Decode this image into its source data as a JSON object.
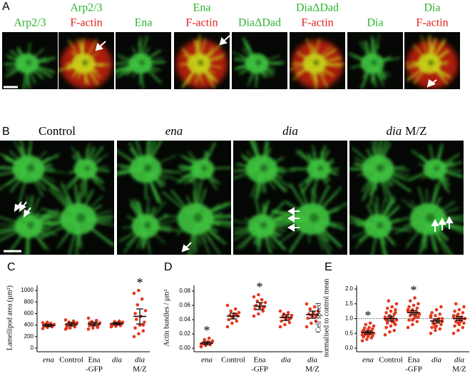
{
  "figure": {
    "panel_a": {
      "letter": "A",
      "tiles": [
        {
          "lines": [
            {
              "text": "Arp2/3",
              "color": "#2fb32f"
            }
          ]
        },
        {
          "lines": [
            {
              "text": "Arp2/3",
              "color": "#2fb32f"
            },
            {
              "text": "F-actin",
              "color": "#e0201b"
            }
          ]
        },
        {
          "lines": [
            {
              "text": "Ena",
              "color": "#2fb32f"
            }
          ]
        },
        {
          "lines": [
            {
              "text": "Ena",
              "color": "#2fb32f"
            },
            {
              "text": "F-actin",
              "color": "#e0201b"
            }
          ]
        },
        {
          "lines": [
            {
              "text": "DiaΔDad",
              "color": "#2fb32f"
            }
          ]
        },
        {
          "lines": [
            {
              "text": "DiaΔDad",
              "color": "#2fb32f"
            },
            {
              "text": "F-actin",
              "color": "#e0201b"
            }
          ]
        },
        {
          "lines": [
            {
              "text": "Dia",
              "color": "#2fb32f"
            }
          ]
        },
        {
          "lines": [
            {
              "text": "Dia",
              "color": "#2fb32f"
            },
            {
              "text": "F-actin",
              "color": "#e0201b"
            }
          ]
        }
      ]
    },
    "panel_b": {
      "letter": "B",
      "tiles": [
        {
          "parts": [
            {
              "text": "Control",
              "italic": false
            }
          ]
        },
        {
          "parts": [
            {
              "text": "ena",
              "italic": true
            }
          ]
        },
        {
          "parts": [
            {
              "text": "dia",
              "italic": true
            }
          ]
        },
        {
          "parts": [
            {
              "text": "dia",
              "italic": true
            },
            {
              "text": "M/Z",
              "italic": false
            }
          ]
        }
      ]
    }
  },
  "chart_data": [
    {
      "type": "dotplot",
      "letter": "C",
      "ylabel": [
        "Lamellipod area (µm²)"
      ],
      "categories": [
        [
          {
            "text": "ena",
            "italic": true
          }
        ],
        [
          {
            "text": "Control",
            "italic": false
          }
        ],
        [
          {
            "text": "Ena",
            "italic": false
          },
          {
            "text": "-GFP",
            "italic": false
          }
        ],
        [
          {
            "text": "dia",
            "italic": true
          }
        ],
        [
          {
            "text": "dia",
            "italic": true
          },
          {
            "text": "M/Z",
            "italic": false
          }
        ]
      ],
      "color": "#e5381f",
      "points": [
        [
          340,
          360,
          370,
          380,
          390,
          395,
          400,
          405,
          410,
          420,
          430,
          440,
          450,
          380,
          410
        ],
        [
          330,
          350,
          370,
          390,
          400,
          410,
          420,
          430,
          440,
          450,
          470,
          490,
          400,
          420,
          350
        ],
        [
          330,
          350,
          370,
          390,
          400,
          410,
          420,
          430,
          440,
          460,
          480,
          520,
          400,
          360,
          440
        ],
        [
          370,
          380,
          390,
          400,
          410,
          420,
          430,
          440,
          450,
          460,
          470,
          410,
          420,
          430
        ],
        [
          200,
          250,
          300,
          350,
          400,
          450,
          500,
          550,
          650,
          750,
          850,
          950,
          1000,
          400,
          600
        ]
      ],
      "means": [
        395,
        415,
        420,
        425,
        550
      ],
      "errors": [
        20,
        30,
        30,
        20,
        130
      ],
      "stars": [
        null,
        null,
        null,
        null,
        "*"
      ],
      "ylim": [
        0,
        1050
      ],
      "yticks": [
        0,
        200,
        400,
        600,
        800,
        1000
      ]
    },
    {
      "type": "dotplot",
      "letter": "D",
      "ylabel": [
        "Actin bundles / µm²"
      ],
      "categories": [
        [
          {
            "text": "ena",
            "italic": true
          }
        ],
        [
          {
            "text": "Control",
            "italic": false
          }
        ],
        [
          {
            "text": "Ena",
            "italic": false
          },
          {
            "text": "-GFP",
            "italic": false
          }
        ],
        [
          {
            "text": "dia",
            "italic": true
          }
        ],
        [
          {
            "text": "dia",
            "italic": true
          },
          {
            "text": "M/Z",
            "italic": false
          }
        ]
      ],
      "color": "#e5381f",
      "points": [
        [
          0.002,
          0.004,
          0.005,
          0.006,
          0.007,
          0.008,
          0.008,
          0.009,
          0.01,
          0.012,
          0.014,
          0.006,
          0.007
        ],
        [
          0.03,
          0.035,
          0.038,
          0.04,
          0.043,
          0.045,
          0.046,
          0.048,
          0.05,
          0.052,
          0.055,
          0.06,
          0.044,
          0.047
        ],
        [
          0.045,
          0.048,
          0.052,
          0.055,
          0.057,
          0.058,
          0.06,
          0.062,
          0.064,
          0.066,
          0.068,
          0.072,
          0.075,
          0.056
        ],
        [
          0.03,
          0.033,
          0.036,
          0.038,
          0.04,
          0.042,
          0.044,
          0.045,
          0.046,
          0.048,
          0.05,
          0.052,
          0.043,
          0.041
        ],
        [
          0.03,
          0.035,
          0.038,
          0.042,
          0.045,
          0.047,
          0.048,
          0.05,
          0.052,
          0.055,
          0.058,
          0.062,
          0.046,
          0.044
        ]
      ],
      "means": [
        0.007,
        0.045,
        0.059,
        0.043,
        0.047
      ],
      "errors": [
        0.002,
        0.004,
        0.005,
        0.004,
        0.005
      ],
      "stars": [
        "*",
        null,
        "*",
        null,
        null
      ],
      "ylim": [
        0,
        0.085
      ],
      "yticks": [
        {
          "value": 0,
          "label": "0.00"
        },
        {
          "value": 0.02,
          "label": "0.02"
        },
        {
          "value": 0.04,
          "label": "0.04"
        },
        {
          "value": 0.06,
          "label": "0.06"
        },
        {
          "value": 0.08,
          "label": "0.08"
        }
      ]
    },
    {
      "type": "dotplot",
      "letter": "E",
      "ylabel": [
        "Cell speed",
        "normalised to control mean"
      ],
      "categories": [
        [
          {
            "text": "ena",
            "italic": true
          }
        ],
        [
          {
            "text": "Control",
            "italic": false
          }
        ],
        [
          {
            "text": "Ena",
            "italic": false
          },
          {
            "text": "-GFP",
            "italic": false
          }
        ],
        [
          {
            "text": "dia",
            "italic": true
          }
        ],
        [
          {
            "text": "dia",
            "italic": true
          },
          {
            "text": "M/Z",
            "italic": false
          }
        ]
      ],
      "color": "#e5381f",
      "points": [
        [
          0.25,
          0.3,
          0.35,
          0.38,
          0.4,
          0.42,
          0.45,
          0.47,
          0.5,
          0.5,
          0.52,
          0.55,
          0.55,
          0.58,
          0.6,
          0.62,
          0.65,
          0.68,
          0.7,
          0.75,
          0.8,
          0.85,
          0.45,
          0.5,
          0.55,
          0.6,
          0.4,
          0.48
        ],
        [
          0.45,
          0.55,
          0.6,
          0.7,
          0.75,
          0.8,
          0.85,
          0.9,
          0.95,
          1.0,
          1.0,
          1.05,
          1.1,
          1.15,
          1.2,
          1.25,
          1.3,
          1.35,
          1.4,
          1.5,
          1.6,
          0.9,
          1.0,
          1.1,
          0.85,
          0.95,
          1.05,
          1.2
        ],
        [
          0.7,
          0.8,
          0.9,
          0.95,
          1.0,
          1.05,
          1.1,
          1.1,
          1.15,
          1.2,
          1.2,
          1.25,
          1.3,
          1.35,
          1.4,
          1.45,
          1.5,
          1.6,
          1.7,
          1.15,
          1.25,
          1.05,
          1.3,
          0.95,
          1.2
        ],
        [
          0.5,
          0.6,
          0.65,
          0.7,
          0.75,
          0.8,
          0.85,
          0.9,
          0.9,
          0.95,
          1.0,
          1.05,
          1.1,
          1.15,
          1.2,
          1.3,
          1.4,
          0.85,
          0.95,
          1.0,
          0.8,
          0.9,
          1.1,
          0.7
        ],
        [
          0.5,
          0.6,
          0.7,
          0.75,
          0.8,
          0.85,
          0.9,
          0.95,
          1.0,
          1.0,
          1.05,
          1.1,
          1.15,
          1.2,
          1.25,
          1.3,
          1.4,
          1.5,
          0.9,
          1.0,
          1.1,
          0.95,
          1.05,
          0.85
        ]
      ],
      "means": [
        0.53,
        1.0,
        1.2,
        0.92,
        1.0
      ],
      "errors": [
        0.05,
        0.08,
        0.07,
        0.07,
        0.07
      ],
      "stars": [
        "*",
        null,
        "*",
        null,
        null
      ],
      "reference_line": 1.0,
      "ylim": [
        0,
        2.05
      ],
      "yticks": [
        {
          "value": 0,
          "label": "0.0"
        },
        {
          "value": 0.5,
          "label": "0.5"
        },
        {
          "value": 1,
          "label": "1.0"
        },
        {
          "value": 1.5,
          "label": "1.5"
        },
        {
          "value": 2,
          "label": "2.0"
        }
      ]
    }
  ]
}
